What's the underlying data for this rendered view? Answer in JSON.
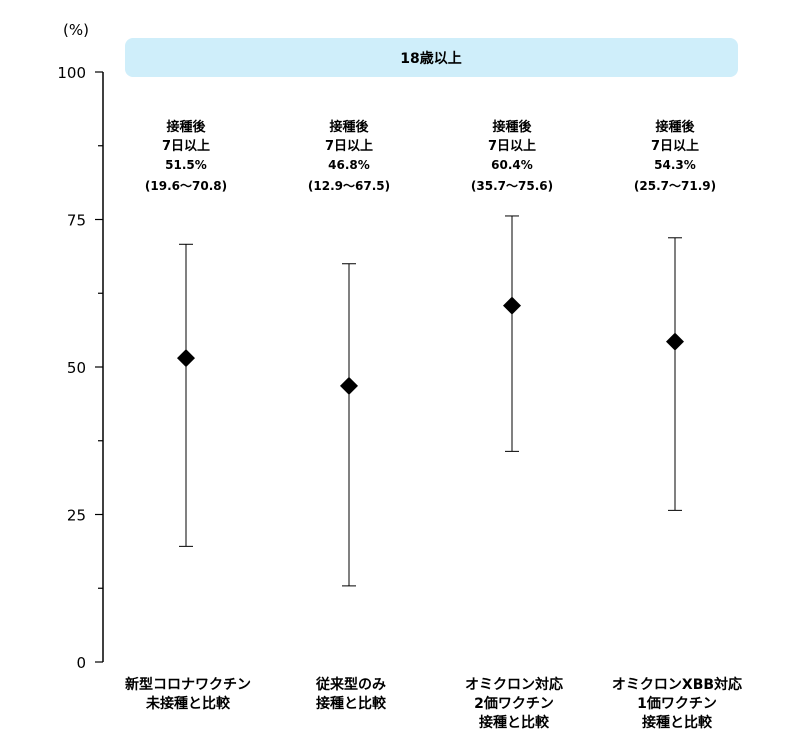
{
  "chart_data": {
    "type": "scatter",
    "title": "18歳以上",
    "ylabel": "(%)",
    "ylim": [
      0,
      100
    ],
    "yticks": [
      "0",
      "25",
      "50",
      "75",
      "100"
    ],
    "errorbars": true,
    "grid": false,
    "colors": {
      "banner": "#cfeefa",
      "marker": "#000000",
      "line": "#000000"
    },
    "categories": [
      {
        "lines": [
          "新型コロナワクチン",
          "未接種と比較"
        ]
      },
      {
        "lines": [
          "従来型のみ",
          "接種と比較"
        ]
      },
      {
        "lines": [
          "オミクロン対応",
          "2価ワクチン",
          "接種と比較"
        ]
      },
      {
        "lines": [
          "オミクロンXBB対応",
          "1価ワクチン",
          "接種と比較"
        ]
      }
    ],
    "points": [
      {
        "value": 51.5,
        "low": 19.6,
        "high": 70.8,
        "label": [
          "接種後",
          "7日以上",
          "51.5%",
          "(19.6〜70.8)"
        ]
      },
      {
        "value": 46.8,
        "low": 12.9,
        "high": 67.5,
        "label": [
          "接種後",
          "7日以上",
          "46.8%",
          "(12.9〜67.5)"
        ]
      },
      {
        "value": 60.4,
        "low": 35.7,
        "high": 75.6,
        "label": [
          "接種後",
          "7日以上",
          "60.4%",
          "(35.7〜75.6)"
        ]
      },
      {
        "value": 54.3,
        "low": 25.7,
        "high": 71.9,
        "label": [
          "接種後",
          "7日以上",
          "54.3%",
          "(25.7〜71.9)"
        ]
      }
    ]
  }
}
